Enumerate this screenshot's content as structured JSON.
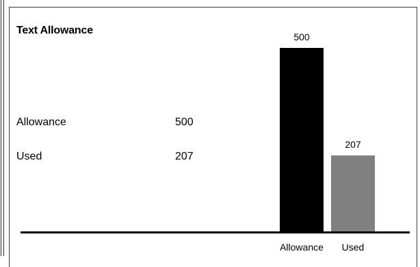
{
  "panel": {
    "title": "Text Allowance",
    "rows": [
      {
        "label": "Allowance",
        "value": "500"
      },
      {
        "label": "Used",
        "value": "207"
      }
    ]
  },
  "chart_data": {
    "type": "bar",
    "title": "",
    "xlabel": "",
    "ylabel": "",
    "categories": [
      "Allowance",
      "Used"
    ],
    "values": [
      500,
      207
    ],
    "value_labels": [
      "500",
      "207"
    ],
    "colors": [
      "#000000",
      "#808080"
    ],
    "ylim": [
      0,
      500
    ],
    "grid": false,
    "legend": "none"
  }
}
